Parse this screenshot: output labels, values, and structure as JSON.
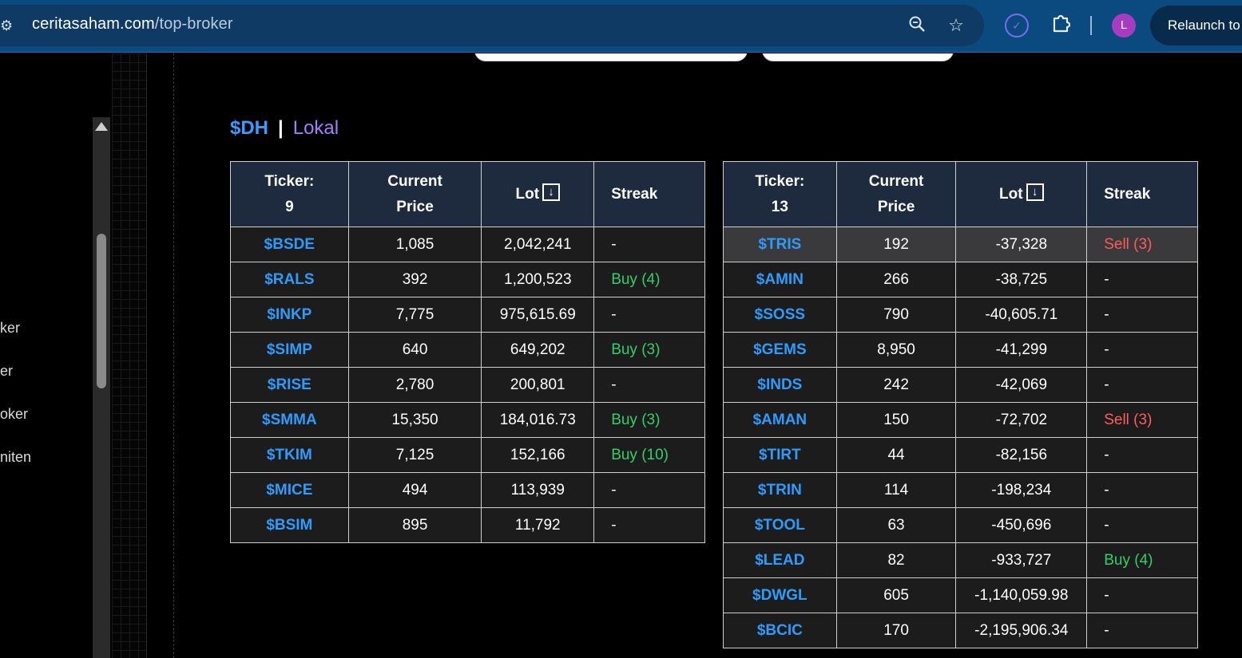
{
  "browser": {
    "url_host": "ceritasaham.com",
    "url_path": "/top-broker",
    "relaunch_label": "Relaunch to",
    "avatar_letter": "L"
  },
  "sidebar": {
    "items": [
      "ker",
      "er",
      "oker",
      "niten"
    ]
  },
  "heading": {
    "code": "$DH",
    "separator": "|",
    "type": "Lokal"
  },
  "tables": [
    {
      "headers": {
        "ticker_label": "Ticker:",
        "ticker_count": "9",
        "price_line1": "Current",
        "price_line2": "Price",
        "lot": "Lot",
        "streak": "Streak"
      },
      "rows": [
        {
          "ticker": "$BSDE",
          "price": "1,085",
          "lot": "2,042,241",
          "streak": "-",
          "type": "none"
        },
        {
          "ticker": "$RALS",
          "price": "392",
          "lot": "1,200,523",
          "streak": "Buy (4)",
          "type": "buy"
        },
        {
          "ticker": "$INKP",
          "price": "7,775",
          "lot": "975,615.69",
          "streak": "-",
          "type": "none"
        },
        {
          "ticker": "$SIMP",
          "price": "640",
          "lot": "649,202",
          "streak": "Buy (3)",
          "type": "buy"
        },
        {
          "ticker": "$RISE",
          "price": "2,780",
          "lot": "200,801",
          "streak": "-",
          "type": "none"
        },
        {
          "ticker": "$SMMA",
          "price": "15,350",
          "lot": "184,016.73",
          "streak": "Buy (3)",
          "type": "buy"
        },
        {
          "ticker": "$TKIM",
          "price": "7,125",
          "lot": "152,166",
          "streak": "Buy (10)",
          "type": "buy"
        },
        {
          "ticker": "$MICE",
          "price": "494",
          "lot": "113,939",
          "streak": "-",
          "type": "none"
        },
        {
          "ticker": "$BSIM",
          "price": "895",
          "lot": "11,792",
          "streak": "-",
          "type": "none"
        }
      ]
    },
    {
      "headers": {
        "ticker_label": "Ticker:",
        "ticker_count": "13",
        "price_line1": "Current",
        "price_line2": "Price",
        "lot": "Lot",
        "streak": "Streak"
      },
      "rows": [
        {
          "ticker": "$TRIS",
          "price": "192",
          "lot": "-37,328",
          "streak": "Sell (3)",
          "type": "sell",
          "highlight": true
        },
        {
          "ticker": "$AMIN",
          "price": "266",
          "lot": "-38,725",
          "streak": "-",
          "type": "none"
        },
        {
          "ticker": "$SOSS",
          "price": "790",
          "lot": "-40,605.71",
          "streak": "-",
          "type": "none"
        },
        {
          "ticker": "$GEMS",
          "price": "8,950",
          "lot": "-41,299",
          "streak": "-",
          "type": "none"
        },
        {
          "ticker": "$INDS",
          "price": "242",
          "lot": "-42,069",
          "streak": "-",
          "type": "none"
        },
        {
          "ticker": "$AMAN",
          "price": "150",
          "lot": "-72,702",
          "streak": "Sell (3)",
          "type": "sell"
        },
        {
          "ticker": "$TIRT",
          "price": "44",
          "lot": "-82,156",
          "streak": "-",
          "type": "none"
        },
        {
          "ticker": "$TRIN",
          "price": "114",
          "lot": "-198,234",
          "streak": "-",
          "type": "none"
        },
        {
          "ticker": "$TOOL",
          "price": "63",
          "lot": "-450,696",
          "streak": "-",
          "type": "none"
        },
        {
          "ticker": "$LEAD",
          "price": "82",
          "lot": "-933,727",
          "streak": "Buy (4)",
          "type": "buy"
        },
        {
          "ticker": "$DWGL",
          "price": "605",
          "lot": "-1,140,059.98",
          "streak": "-",
          "type": "none"
        },
        {
          "ticker": "$BCIC",
          "price": "170",
          "lot": "-2,195,906.34",
          "streak": "-",
          "type": "none"
        }
      ]
    }
  ],
  "colors": {
    "ticker": "#2f9bff",
    "buy": "#2fd06a",
    "sell": "#ff5c5c",
    "header_bg": "#1e2a3d"
  },
  "icons": {
    "site": "tune-icon",
    "zoom": "zoom-icon",
    "bookmark": "star-icon",
    "extension": "check-circle-icon",
    "extensions": "puzzle-icon",
    "sort": "arrow-down-icon"
  }
}
